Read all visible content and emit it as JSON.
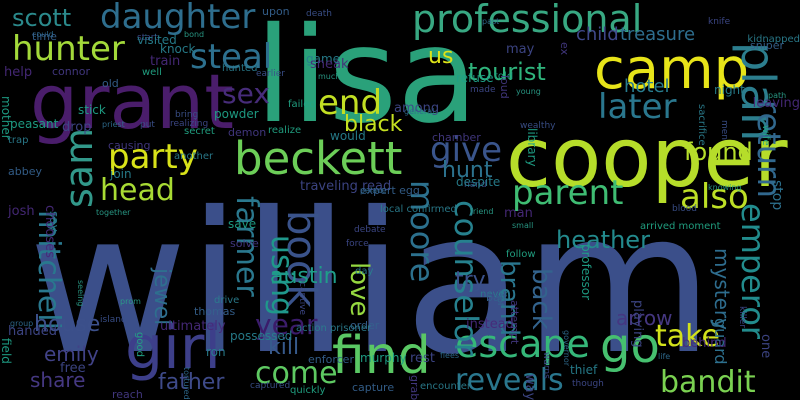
{
  "words": [
    {
      "text": "william",
      "color": "#3b4f8a",
      "rot": 0
    },
    {
      "text": "lisa",
      "color": "#2aa17a",
      "rot": 0
    },
    {
      "text": "cooper",
      "color": "#b6dd2a",
      "rot": 0
    },
    {
      "text": "grant",
      "color": "#4a1d6b",
      "rot": 0
    },
    {
      "text": "camp",
      "color": "#e7e419",
      "rot": 0
    },
    {
      "text": "beckett",
      "color": "#6cce58",
      "rot": 0
    },
    {
      "text": "find",
      "color": "#5ac864",
      "rot": 0
    },
    {
      "text": "girl",
      "color": "#3d3f8a",
      "rot": 0
    },
    {
      "text": "plan",
      "color": "#2c7e8e",
      "rot": 90
    },
    {
      "text": "hunter",
      "color": "#a3d93a",
      "rot": 0
    },
    {
      "text": "professional",
      "color": "#38a882",
      "rot": 0
    },
    {
      "text": "daughter",
      "color": "#2e6e8e",
      "rot": 0
    },
    {
      "text": "steal",
      "color": "#2d708e",
      "rot": 0
    },
    {
      "text": "scott",
      "color": "#2b8a8c",
      "rot": 0
    },
    {
      "text": "sam",
      "color": "#32988a",
      "rot": 90
    },
    {
      "text": "end",
      "color": "#c2df23",
      "rot": 0
    },
    {
      "text": "sex",
      "color": "#472c7a",
      "rot": 0
    },
    {
      "text": "party",
      "color": "#d8e219",
      "rot": 0
    },
    {
      "text": "book",
      "color": "#3a538b",
      "rot": 90
    },
    {
      "text": "parent",
      "color": "#3fbc73",
      "rot": 0
    },
    {
      "text": "give",
      "color": "#3a558c",
      "rot": 0
    },
    {
      "text": "later",
      "color": "#2a778e",
      "rot": 0
    },
    {
      "text": "also",
      "color": "#bddf26",
      "rot": 0
    },
    {
      "text": "return",
      "color": "#31688e",
      "rot": 90
    },
    {
      "text": "emperor",
      "color": "#228c8d",
      "rot": 90
    },
    {
      "text": "go",
      "color": "#46c06f",
      "rot": 0
    },
    {
      "text": "take",
      "color": "#d2e21b",
      "rot": 0
    },
    {
      "text": "escape",
      "color": "#35b779",
      "rot": 0
    },
    {
      "text": "reveals",
      "color": "#2a778e",
      "rot": 0
    },
    {
      "text": "bandit",
      "color": "#7ad151",
      "rot": 0
    },
    {
      "text": "come",
      "color": "#5ec962",
      "rot": 0
    },
    {
      "text": "kill",
      "color": "#375a8c",
      "rot": 0
    },
    {
      "text": "year",
      "color": "#3b1c6b",
      "rot": 0
    },
    {
      "text": "head",
      "color": "#a8db34",
      "rot": 0
    },
    {
      "text": "farmer",
      "color": "#2a788e",
      "rot": 90
    },
    {
      "text": "using",
      "color": "#1f988b",
      "rot": 90
    },
    {
      "text": "moore",
      "color": "#2c718e",
      "rot": 90
    },
    {
      "text": "counselor",
      "color": "#26818e",
      "rot": 90
    },
    {
      "text": "mitchell",
      "color": "#29788e",
      "rot": 90
    },
    {
      "text": "house",
      "color": "#3c508b",
      "rot": 0
    },
    {
      "text": "emily",
      "color": "#414287",
      "rot": 0
    },
    {
      "text": "share",
      "color": "#453882",
      "rot": 0
    },
    {
      "text": "father",
      "color": "#3e4a89",
      "rot": 0
    },
    {
      "text": "love",
      "color": "#95d840",
      "rot": 90
    },
    {
      "text": "brand",
      "color": "#2a768e",
      "rot": 90
    },
    {
      "text": "back",
      "color": "#33638d",
      "rot": 90
    },
    {
      "text": "mystery",
      "color": "#2e6d8e",
      "rot": 90
    },
    {
      "text": "guard",
      "color": "#2d708e",
      "rot": 90
    },
    {
      "text": "found",
      "color": "#b5de2b",
      "rot": 0
    },
    {
      "text": "black",
      "color": "#c5e021",
      "rot": 0
    },
    {
      "text": "us",
      "color": "#dde318",
      "rot": 0
    },
    {
      "text": "tourist",
      "color": "#2fb47c",
      "rot": 0
    },
    {
      "text": "heather",
      "color": "#238a8d",
      "rot": 0
    },
    {
      "text": "hunt",
      "color": "#2c728e",
      "rot": 0
    },
    {
      "text": "arrow",
      "color": "#453781",
      "rot": 0
    },
    {
      "text": "jewel",
      "color": "#2e6f8e",
      "rot": 90
    },
    {
      "text": "austin",
      "color": "#1f9e89",
      "rot": 0
    },
    {
      "text": "try",
      "color": "#3b528b",
      "rot": 0
    },
    {
      "text": "hotel",
      "color": "#287c8e",
      "rot": 0
    },
    {
      "text": "child",
      "color": "#3f4889",
      "rot": 0
    },
    {
      "text": "treasure",
      "color": "#2e6e8e",
      "rot": 0
    },
    {
      "text": "stop",
      "color": "#2d718e",
      "rot": 90
    }
  ],
  "small_words": [
    {
      "text": "could"
    },
    {
      "text": "start"
    },
    {
      "text": "hunted"
    },
    {
      "text": "upon"
    },
    {
      "text": "game"
    },
    {
      "text": "sneak"
    },
    {
      "text": "much"
    },
    {
      "text": "earlier"
    },
    {
      "text": "realize"
    },
    {
      "text": "demon"
    },
    {
      "text": "powder"
    },
    {
      "text": "among"
    },
    {
      "text": "general"
    },
    {
      "text": "made"
    },
    {
      "text": "trap"
    },
    {
      "text": "abbey"
    },
    {
      "text": "join"
    },
    {
      "text": "josh"
    },
    {
      "text": "together"
    },
    {
      "text": "put"
    },
    {
      "text": "well"
    },
    {
      "text": "connor"
    },
    {
      "text": "peasant"
    },
    {
      "text": "drop"
    },
    {
      "text": "priest"
    },
    {
      "text": "force"
    },
    {
      "text": "day"
    },
    {
      "text": "order"
    },
    {
      "text": "ron"
    },
    {
      "text": "instead"
    },
    {
      "text": "friend"
    },
    {
      "text": "hand"
    },
    {
      "text": "follow"
    },
    {
      "text": "attempt"
    },
    {
      "text": "professor"
    },
    {
      "text": "playing"
    },
    {
      "text": "life"
    },
    {
      "text": "though"
    },
    {
      "text": "encounter"
    },
    {
      "text": "capture"
    },
    {
      "text": "thief"
    },
    {
      "text": "behind"
    },
    {
      "text": "knowing"
    },
    {
      "text": "blood"
    },
    {
      "text": "arrived moment"
    },
    {
      "text": "solve"
    },
    {
      "text": "save"
    },
    {
      "text": "traveling read"
    },
    {
      "text": "palace"
    },
    {
      "text": "debate"
    },
    {
      "text": "local confirmed"
    },
    {
      "text": "expert egg"
    },
    {
      "text": "despite"
    },
    {
      "text": "man"
    },
    {
      "text": "small"
    },
    {
      "text": "captured"
    },
    {
      "text": "quickly"
    },
    {
      "text": "grab"
    },
    {
      "text": "murphy"
    },
    {
      "text": "rest"
    },
    {
      "text": "flees"
    },
    {
      "text": "warns"
    },
    {
      "text": "drive"
    },
    {
      "text": "thomas"
    },
    {
      "text": "possessed"
    },
    {
      "text": "ultimately"
    },
    {
      "text": "prom"
    },
    {
      "text": "island"
    },
    {
      "text": "good"
    },
    {
      "text": "reach"
    },
    {
      "text": "field"
    },
    {
      "text": "free"
    },
    {
      "text": "tortured"
    },
    {
      "text": "captive"
    },
    {
      "text": "action prisoner"
    },
    {
      "text": "enforcer"
    },
    {
      "text": "would"
    },
    {
      "text": "train"
    },
    {
      "text": "bond"
    },
    {
      "text": "bring"
    },
    {
      "text": "secret"
    },
    {
      "text": "causing"
    },
    {
      "text": "stick"
    },
    {
      "text": "handed"
    },
    {
      "text": "group"
    },
    {
      "text": "realizing"
    },
    {
      "text": "another"
    },
    {
      "text": "old"
    },
    {
      "text": "knock"
    },
    {
      "text": "help"
    },
    {
      "text": "young"
    },
    {
      "text": "wealthy"
    },
    {
      "text": "told"
    },
    {
      "text": "chamber"
    },
    {
      "text": "refuse"
    },
    {
      "text": "may"
    },
    {
      "text": "past"
    },
    {
      "text": "knife"
    },
    {
      "text": "kidnapped"
    },
    {
      "text": "sniper"
    },
    {
      "text": "night"
    },
    {
      "text": "leaving"
    },
    {
      "text": "path"
    },
    {
      "text": "men"
    },
    {
      "text": "wife"
    },
    {
      "text": "loud"
    },
    {
      "text": "library"
    },
    {
      "text": "way"
    },
    {
      "text": "roof"
    },
    {
      "text": "best"
    },
    {
      "text": "never"
    },
    {
      "text": "bait"
    },
    {
      "text": "say"
    },
    {
      "text": "chooses"
    },
    {
      "text": "seeing"
    },
    {
      "text": "death"
    },
    {
      "text": "failed"
    },
    {
      "text": "ex"
    },
    {
      "text": "mother"
    },
    {
      "text": "one"
    },
    {
      "text": "governor"
    },
    {
      "text": "killer"
    },
    {
      "text": "sacrifice"
    },
    {
      "text": "time"
    },
    {
      "text": "visited"
    }
  ]
}
